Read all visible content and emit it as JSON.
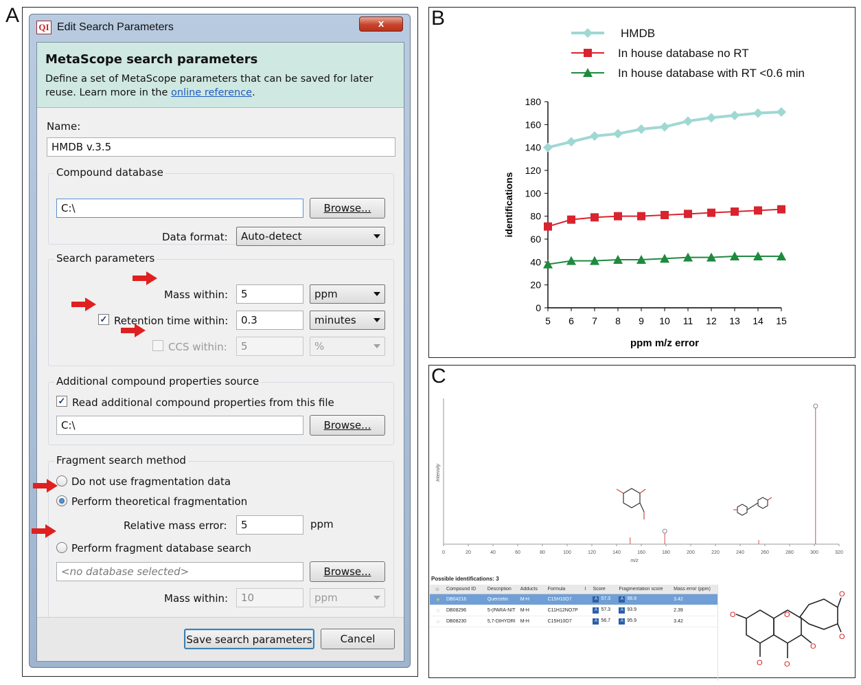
{
  "panels": {
    "a": "A",
    "b": "B",
    "c": "C"
  },
  "dialog": {
    "app_icon": "QI",
    "title": "Edit Search Parameters",
    "close_label": "x",
    "header_title": "MetaScope search parameters",
    "header_desc": "Define a set of MetaScope parameters that can be saved for later reuse. Learn more in the ",
    "header_link": "online reference",
    "header_desc_end": ".",
    "name_label": "Name:",
    "name_value": "HMDB v.3.5",
    "compound_db": {
      "title": "Compound database",
      "path_value": "C:\\",
      "browse": "Browse...",
      "format_label": "Data format:",
      "format_value": "Auto-detect"
    },
    "search_params": {
      "title": "Search parameters",
      "mass_label": "Mass within:",
      "mass_value": "5",
      "mass_unit": "ppm",
      "rt_label": "Retention time within:",
      "rt_value": "0.3",
      "rt_unit": "minutes",
      "rt_checked": true,
      "ccs_label": "CCS within:",
      "ccs_value": "5",
      "ccs_unit": "%",
      "ccs_checked": false
    },
    "additional": {
      "title": "Additional compound properties source",
      "check_label": "Read additional compound properties from this file",
      "checked": true,
      "path_value": "C:\\",
      "browse": "Browse..."
    },
    "fragment": {
      "title": "Fragment search method",
      "opt_none": "Do not use fragmentation data",
      "opt_theoretical": "Perform theoretical fragmentation",
      "selected": "theoretical",
      "rel_mass_label": "Relative mass error:",
      "rel_mass_value": "5",
      "rel_mass_unit": "ppm",
      "opt_db": "Perform fragment database search",
      "db_placeholder": "<no database selected>",
      "browse": "Browse...",
      "mass_label": "Mass within:",
      "mass_value": "10",
      "mass_unit": "ppm"
    },
    "save_button": "Save search parameters",
    "cancel_button": "Cancel",
    "accent_color": "#cfe8e1",
    "arrow_color": "#e02020"
  },
  "chart_data": {
    "type": "line",
    "x": [
      5,
      6,
      7,
      8,
      9,
      10,
      11,
      12,
      13,
      14,
      15
    ],
    "series": [
      {
        "name": "HMDB",
        "color": "#9fd8d3",
        "marker": "diamond",
        "values": [
          140,
          145,
          150,
          152,
          156,
          158,
          163,
          166,
          168,
          170,
          171
        ]
      },
      {
        "name": "In house database no RT",
        "color": "#d9232e",
        "marker": "square",
        "values": [
          71,
          77,
          79,
          80,
          80,
          81,
          82,
          83,
          84,
          85,
          86
        ]
      },
      {
        "name": "In house database with RT <0.6 min",
        "color": "#1e8a3e",
        "marker": "triangle",
        "values": [
          38,
          41,
          41,
          42,
          42,
          43,
          44,
          44,
          45,
          45,
          45
        ]
      }
    ],
    "xlabel": "ppm m/z error",
    "ylabel": "identifications",
    "xlim": [
      5,
      15
    ],
    "ylim": [
      0,
      180
    ],
    "yticks": [
      0,
      20,
      40,
      60,
      80,
      100,
      120,
      140,
      160,
      180
    ],
    "xticks": [
      5,
      6,
      7,
      8,
      9,
      10,
      11,
      12,
      13,
      14,
      15
    ],
    "legend_position": "top"
  },
  "spectrum": {
    "ylabel": "Intensity",
    "xlabel": "m/z",
    "xticks": [
      0,
      20,
      40,
      60,
      80,
      100,
      120,
      140,
      160,
      180,
      200,
      220,
      240,
      260,
      280,
      300,
      320
    ],
    "xlim": [
      0,
      320
    ],
    "peaks": [
      {
        "mz": 151,
        "rel": 0.05,
        "marker": false
      },
      {
        "mz": 179,
        "rel": 0.08,
        "marker": true
      },
      {
        "mz": 255,
        "rel": 0.03,
        "marker": false
      },
      {
        "mz": 301,
        "rel": 1.0,
        "marker": true
      }
    ],
    "possible_title": "Possible identifications: 3",
    "columns": [
      "Compound ID",
      "Description",
      "Adducts",
      "Formula",
      "I",
      "Score",
      "Fragmentation score",
      "Mass error (ppm)"
    ],
    "rows": [
      {
        "id": "DB04216",
        "desc": "Quercetin",
        "adduct": "M-H",
        "formula": "C15H10O7",
        "score": "57.3",
        "frag": "98.8",
        "err": "3.42",
        "selected": true
      },
      {
        "id": "DB08296",
        "desc": "5-(PARA-NIT",
        "adduct": "M-H",
        "formula": "C11H12NO7P",
        "score": "57.3",
        "frag": "93.9",
        "err": "2.39",
        "selected": false
      },
      {
        "id": "DB08230",
        "desc": "5,7-DIHYDRI",
        "adduct": "M-H",
        "formula": "C15H10O7",
        "score": "56.7",
        "frag": "95.9",
        "err": "3.42",
        "selected": false
      }
    ],
    "score_badge": "A"
  }
}
